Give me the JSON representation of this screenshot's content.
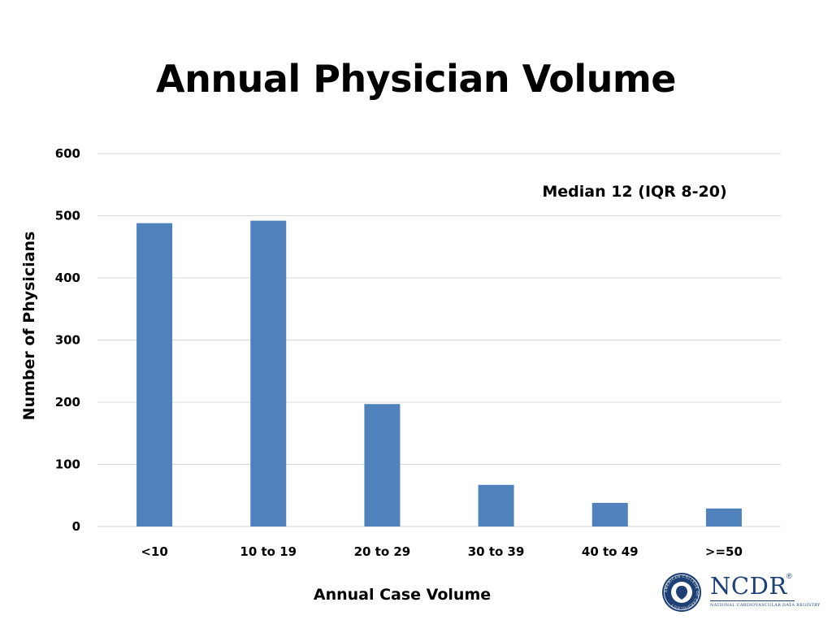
{
  "slide": {
    "title": "Annual Physician Volume"
  },
  "chart_data": {
    "type": "bar",
    "title": "Annual Physician Volume",
    "categories": [
      "<10",
      "10 to 19",
      "20 to 29",
      "30 to 39",
      "40 to 49",
      ">=50"
    ],
    "values": [
      488,
      492,
      197,
      67,
      38,
      29
    ],
    "xlabel": "Annual Case Volume",
    "ylabel": "Number of Physicians",
    "ylim": [
      0,
      600
    ],
    "yticks": [
      0,
      100,
      200,
      300,
      400,
      500,
      600
    ],
    "grid": true,
    "annotation": "Median 12 (IQR 8-20)",
    "bar_color": "#4f81bd",
    "grid_color": "#d9d9d9"
  },
  "logo": {
    "wordmark": "NCDR",
    "registered": "®",
    "tagline": "NATIONAL CARDIOVASCULAR DATA REGISTRY",
    "seal_text": "AMERICAN COLLEGE OF CARDIOLOGY",
    "color": "#1d3f73"
  }
}
